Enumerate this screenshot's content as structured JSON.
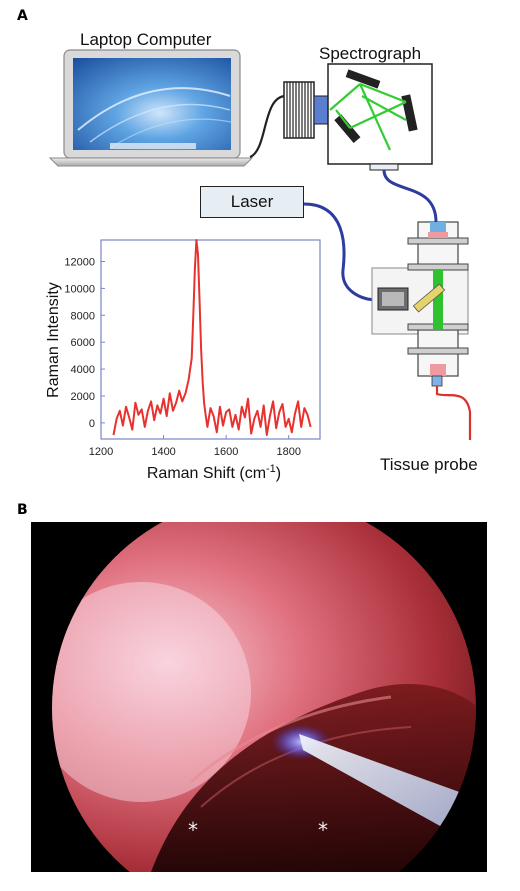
{
  "panel_a": {
    "letter": "A",
    "laptop_label": "Laptop Computer",
    "spectrograph_label": "Spectrograph",
    "laser_label": "Laser",
    "tissue_probe_label": "Tissue probe"
  },
  "panel_b": {
    "letter": "B",
    "asterisks": [
      "*",
      "*"
    ]
  },
  "chart_data": {
    "type": "line",
    "title": "",
    "xlabel": "Raman Shift (cm-1)",
    "ylabel": "Raman Intensity",
    "xlim": [
      1200,
      1900
    ],
    "ylim": [
      -1200,
      13600
    ],
    "xticks": [
      1200,
      1400,
      1600,
      1800
    ],
    "yticks": [
      0,
      2000,
      4000,
      6000,
      8000,
      10000,
      12000
    ],
    "grid": false,
    "series": [
      {
        "color": "#e8322f",
        "x": [
          1240,
          1250,
          1260,
          1270,
          1280,
          1290,
          1300,
          1310,
          1320,
          1330,
          1340,
          1350,
          1360,
          1370,
          1380,
          1390,
          1400,
          1410,
          1420,
          1430,
          1440,
          1450,
          1460,
          1470,
          1480,
          1490,
          1495,
          1500,
          1505,
          1510,
          1515,
          1520,
          1525,
          1530,
          1535,
          1540,
          1550,
          1560,
          1570,
          1580,
          1590,
          1600,
          1610,
          1620,
          1630,
          1640,
          1650,
          1660,
          1670,
          1680,
          1690,
          1700,
          1710,
          1720,
          1730,
          1740,
          1750,
          1760,
          1770,
          1780,
          1790,
          1800,
          1810,
          1820,
          1830,
          1840,
          1850,
          1860,
          1870
        ],
        "y": [
          -900,
          300,
          900,
          -200,
          1200,
          400,
          -500,
          1500,
          600,
          1000,
          -300,
          900,
          1600,
          200,
          1300,
          700,
          1800,
          500,
          2200,
          900,
          1500,
          2400,
          1600,
          2200,
          3200,
          4800,
          8000,
          11500,
          13600,
          12500,
          9000,
          5500,
          3000,
          1400,
          500,
          -300,
          1100,
          500,
          -700,
          1200,
          -200,
          800,
          1000,
          -300,
          600,
          -500,
          1200,
          400,
          1800,
          -800,
          300,
          900,
          -300,
          1300,
          -900,
          500,
          1600,
          -400,
          800,
          1400,
          -300,
          300,
          -700,
          700,
          1600,
          -300,
          1100,
          600,
          -300
        ]
      }
    ]
  },
  "colors": {
    "spectrum_red": "#e8322f",
    "fiber_blue": "#2d3c9e",
    "probe_fiber_red": "#d9322b",
    "beam_green": "#33cc33",
    "laser_box_fill": "#e7eef3"
  }
}
